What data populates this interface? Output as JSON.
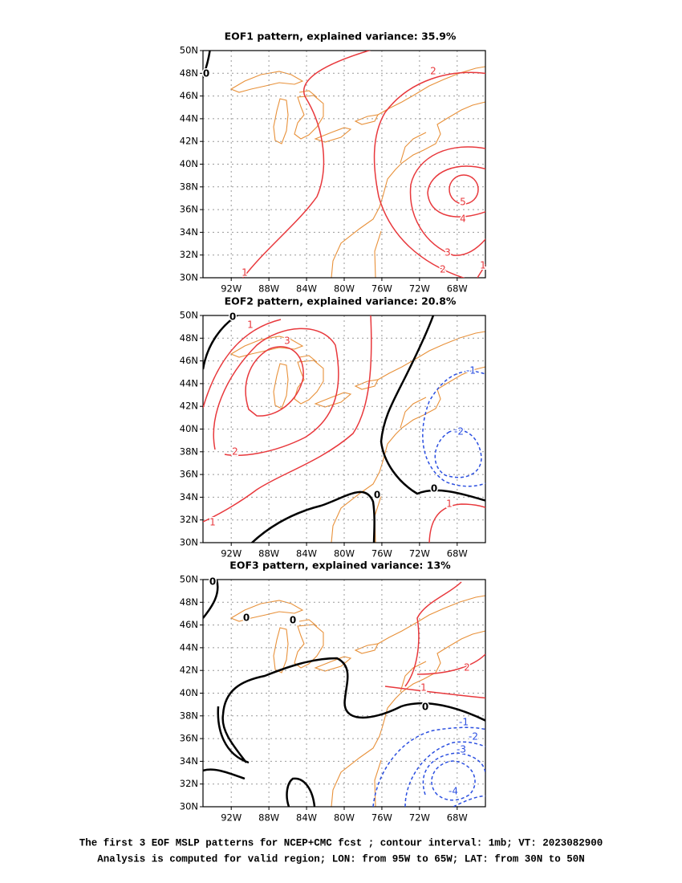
{
  "panels": [
    {
      "title": "EOF1 pattern, explained variance: 35.9%",
      "contour_labels": [
        "2",
        "5",
        "4",
        "3",
        "2",
        "1",
        "1",
        "0"
      ]
    },
    {
      "title": "EOF2 pattern, explained variance: 20.8%",
      "contour_labels": [
        "1",
        "3",
        "2",
        "1",
        "0",
        "0",
        "0",
        "-1",
        "-2",
        "1"
      ]
    },
    {
      "title": "EOF3 pattern, explained variance: 13%",
      "contour_labels": [
        "0",
        "2",
        "1",
        "0",
        "-1",
        "-2",
        "-3",
        "-4",
        "0",
        "0"
      ]
    }
  ],
  "lat_labels": [
    "50N",
    "48N",
    "46N",
    "44N",
    "42N",
    "40N",
    "38N",
    "36N",
    "34N",
    "32N",
    "30N"
  ],
  "lon_labels": [
    "92W",
    "88W",
    "84W",
    "80W",
    "76W",
    "72W",
    "68W"
  ],
  "caption": [
    "The first 3 EOF MSLP patterns for NCEP+CMC fcst ; contour interval: 1mb; VT: 2023082900",
    "Analysis is computed for valid region; LON: from 95W to 65W; LAT: from 30N to 50N"
  ]
}
